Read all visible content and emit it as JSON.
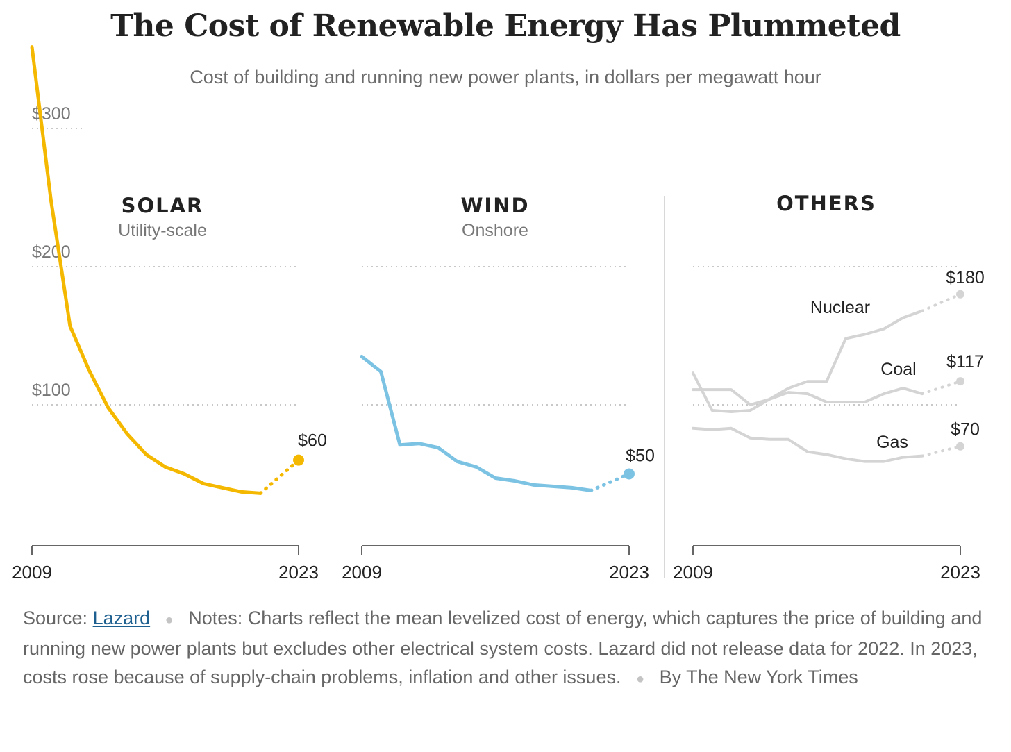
{
  "header": {
    "title": "The Cost of Renewable Energy Has Plummeted",
    "subtitle": "Cost of building and running new power plants, in dollars per megawatt hour"
  },
  "colors": {
    "solar": "#f5b800",
    "wind": "#7cc3e3",
    "others": "#d4d4d4",
    "grid": "#c8c8c8",
    "axis": "#333333",
    "label": "#777777"
  },
  "footer": {
    "source_label": "Source:",
    "source_link": "Lazard",
    "notes": "Notes: Charts reflect the mean levelized cost of energy, which captures the price of building and running new power plants but excludes other electrical system costs. Lazard did not release data for 2022. In 2023, costs rose because of supply-chain problems, inflation and other issues.",
    "byline": "By The New York Times"
  },
  "chart_data": {
    "type": "line",
    "ylim": [
      0,
      360
    ],
    "y_ticks": [
      {
        "value": 300,
        "label": "$300"
      },
      {
        "value": 200,
        "label": "$200"
      },
      {
        "value": 100,
        "label": "$100"
      }
    ],
    "x_tick_labels": [
      "2009",
      "2023"
    ],
    "panels": [
      {
        "id": "solar",
        "title": "SOLAR",
        "subtitle": "Utility-scale",
        "x": [
          2009,
          2010,
          2011,
          2012,
          2013,
          2014,
          2015,
          2016,
          2017,
          2018,
          2019,
          2020,
          2021,
          2023
        ],
        "series": [
          {
            "name": "",
            "values": [
              359,
              248,
              157,
              125,
              98,
              79,
              64,
              55,
              50,
              43,
              40,
              37,
              36,
              60
            ],
            "end_label": "$60"
          }
        ]
      },
      {
        "id": "wind",
        "title": "WIND",
        "subtitle": "Onshore",
        "x": [
          2009,
          2010,
          2011,
          2012,
          2013,
          2014,
          2015,
          2016,
          2017,
          2018,
          2019,
          2020,
          2021,
          2023
        ],
        "series": [
          {
            "name": "",
            "values": [
              135,
              124,
              71,
              72,
              69,
              59,
              55,
              47,
              45,
              42,
              41,
              40,
              38,
              50
            ],
            "end_label": "$50"
          }
        ]
      },
      {
        "id": "others",
        "title": "OTHERS",
        "subtitle": "",
        "x": [
          2009,
          2010,
          2011,
          2012,
          2013,
          2014,
          2015,
          2016,
          2017,
          2018,
          2019,
          2020,
          2021,
          2023
        ],
        "series": [
          {
            "name": "Nuclear",
            "values": [
              123,
              96,
              95,
              96,
              104,
              112,
              117,
              117,
              148,
              151,
              155,
              163,
              168,
              180
            ],
            "end_label": "$180"
          },
          {
            "name": "Coal",
            "values": [
              111,
              111,
              111,
              100,
              104,
              109,
              108,
              102,
              102,
              102,
              108,
              112,
              108,
              117
            ],
            "end_label": "$117"
          },
          {
            "name": "Gas",
            "values": [
              83,
              82,
              83,
              76,
              75,
              75,
              66,
              64,
              61,
              59,
              59,
              62,
              63,
              70
            ],
            "end_label": "$70"
          }
        ]
      }
    ]
  }
}
